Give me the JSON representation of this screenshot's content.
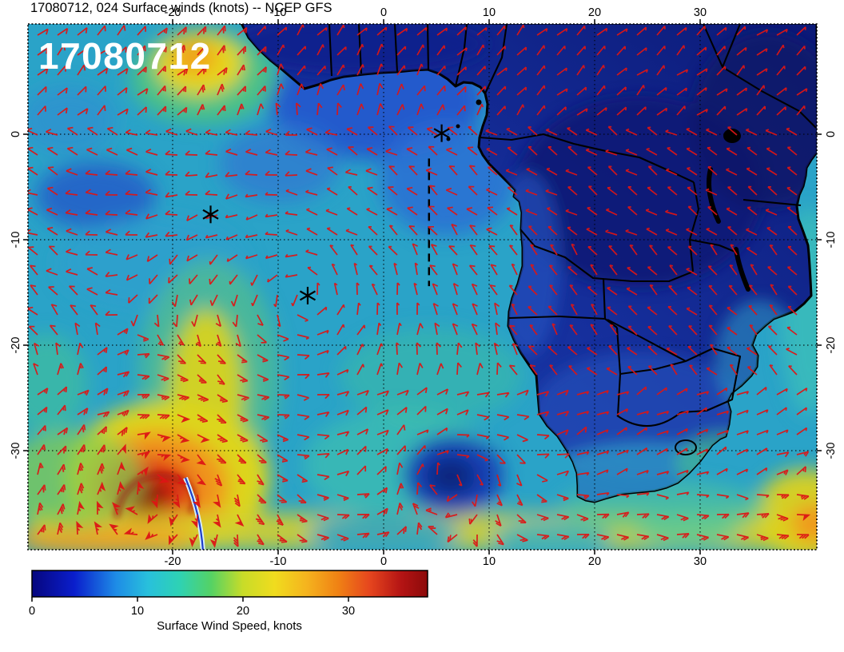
{
  "chart_data": {
    "type": "heatmap",
    "title": "17080712, 024 Surface winds (knots) -- NCEP GFS",
    "overlay_label": "17080712",
    "model": "NCEP GFS",
    "run": "17080712",
    "forecast_hour": "024",
    "variable": "Surface winds",
    "units": "knots",
    "axes": {
      "lon_ticks": [
        -20,
        -10,
        0,
        10,
        20,
        30
      ],
      "lat_ticks": [
        0,
        -10,
        -20,
        -30
      ],
      "lon_range": [
        -34,
        41
      ],
      "lat_range": [
        -39.5,
        10.5
      ],
      "grid": "dotted"
    },
    "colorbar": {
      "label": "Surface Wind Speed, knots",
      "ticks": [
        0,
        10,
        20,
        30
      ],
      "min": 0,
      "max": 37.5,
      "stops": [
        {
          "pos": 0.0,
          "color": "#06067e"
        },
        {
          "pos": 0.107,
          "color": "#0a1ecc"
        },
        {
          "pos": 0.213,
          "color": "#1e8ce6"
        },
        {
          "pos": 0.293,
          "color": "#28c0dc"
        },
        {
          "pos": 0.373,
          "color": "#2ed2b4"
        },
        {
          "pos": 0.453,
          "color": "#55d264"
        },
        {
          "pos": 0.533,
          "color": "#c8dc28"
        },
        {
          "pos": 0.613,
          "color": "#f0dc1e"
        },
        {
          "pos": 0.693,
          "color": "#f5b41e"
        },
        {
          "pos": 0.773,
          "color": "#f08214"
        },
        {
          "pos": 0.853,
          "color": "#e6461e"
        },
        {
          "pos": 0.933,
          "color": "#b41414"
        },
        {
          "pos": 1.0,
          "color": "#8c0a0a"
        }
      ]
    },
    "markers": [
      {
        "symbol": "*",
        "lon": -16.4,
        "lat": -7.6
      },
      {
        "symbol": "*",
        "lon": -7.2,
        "lat": -15.3
      },
      {
        "symbol": "*",
        "lon": 5.5,
        "lat": 0.1
      }
    ],
    "annotation_line": {
      "lon": 4.3,
      "lat_from": -2.3,
      "lat_to": -14.4
    },
    "barb_color": "#dd1616",
    "wind_vortices": [
      {
        "name": "midlatitude-cyclone",
        "lon": -22.2,
        "lat": -33.9,
        "spin": 1,
        "radius_px": 130,
        "strength": 2.4
      },
      {
        "name": "cutoff-low",
        "lon": 6.4,
        "lat": -32.3,
        "spin": 1,
        "radius_px": 80,
        "strength": 1.6
      },
      {
        "name": "south-atlantic-high",
        "lon": -7.2,
        "lat": -15.3,
        "spin": -1,
        "radius_px": 190,
        "strength": 1.0
      }
    ],
    "speed_features": [
      {
        "name": "cyclone-core",
        "lon": -22.2,
        "lat": -33.9,
        "peak_knots": 37
      },
      {
        "name": "nw-coastal-jet",
        "lon": -17.4,
        "lat": 6.7,
        "peak_knots": 25
      },
      {
        "name": "prefrontal-ridge",
        "lon": -16.8,
        "lat": -24.8,
        "peak_knots": 23
      },
      {
        "name": "se-yellow-patch",
        "lon": 40,
        "lat": -36,
        "peak_knots": 24
      },
      {
        "name": "calm-low-center",
        "lon": 6.4,
        "lat": -32.3,
        "knots": 5
      },
      {
        "name": "high-center-calm",
        "lon": -7.2,
        "lat": -15.3,
        "knots": 7
      },
      {
        "name": "southern-westerlies-band",
        "lat": -37,
        "knots": 22
      },
      {
        "name": "africa-interior-light-winds",
        "knots": 7
      }
    ]
  }
}
